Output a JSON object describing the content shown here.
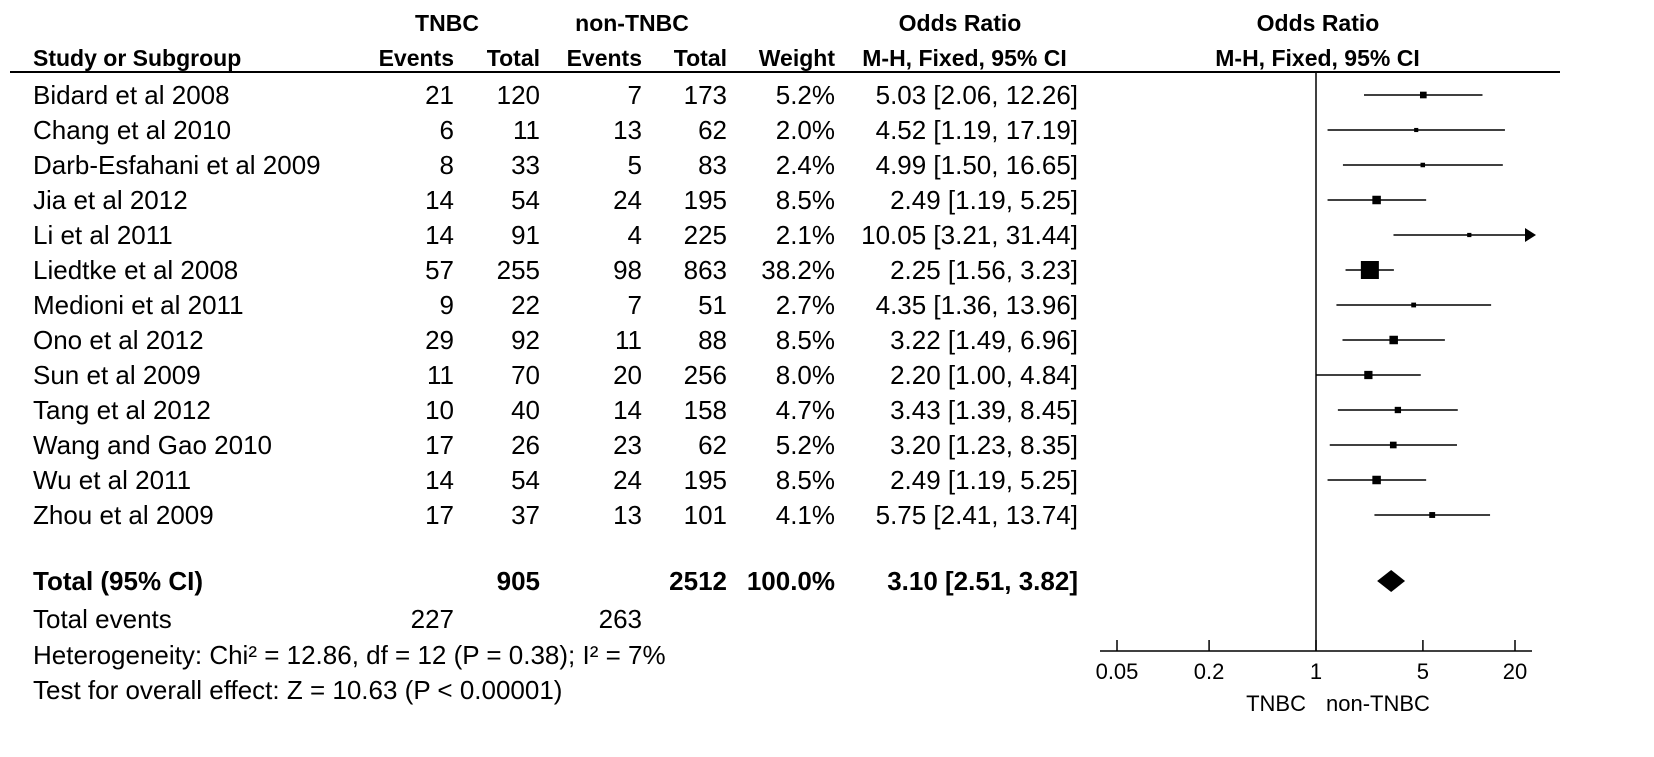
{
  "headers": {
    "group1": "TNBC",
    "group2": "non-TNBC",
    "odds_ratio": "Odds Ratio",
    "odds_ratio_plot": "Odds Ratio",
    "study": "Study or Subgroup",
    "events1": "Events",
    "total1": "Total",
    "events2": "Events",
    "total2": "Total",
    "weight": "Weight",
    "ci_method": "M-H, Fixed, 95% CI",
    "ci_method_plot": "M-H, Fixed, 95% CI"
  },
  "studies": [
    {
      "name": "Bidard et al 2008",
      "e1": "21",
      "n1": "120",
      "e2": "7",
      "n2": "173",
      "weight": "5.2%",
      "or_text": "5.03 [2.06, 12.26]"
    },
    {
      "name": "Chang et al 2010",
      "e1": "6",
      "n1": "11",
      "e2": "13",
      "n2": "62",
      "weight": "2.0%",
      "or_text": "4.52 [1.19, 17.19]"
    },
    {
      "name": "Darb-Esfahani et al 2009",
      "e1": "8",
      "n1": "33",
      "e2": "5",
      "n2": "83",
      "weight": "2.4%",
      "or_text": "4.99 [1.50, 16.65]"
    },
    {
      "name": "Jia et al 2012",
      "e1": "14",
      "n1": "54",
      "e2": "24",
      "n2": "195",
      "weight": "8.5%",
      "or_text": "2.49 [1.19, 5.25]"
    },
    {
      "name": "Li et al 2011",
      "e1": "14",
      "n1": "91",
      "e2": "4",
      "n2": "225",
      "weight": "2.1%",
      "or_text": "10.05 [3.21, 31.44]"
    },
    {
      "name": "Liedtke et al 2008",
      "e1": "57",
      "n1": "255",
      "e2": "98",
      "n2": "863",
      "weight": "38.2%",
      "or_text": "2.25 [1.56, 3.23]"
    },
    {
      "name": "Medioni et al 2011",
      "e1": "9",
      "n1": "22",
      "e2": "7",
      "n2": "51",
      "weight": "2.7%",
      "or_text": "4.35 [1.36, 13.96]"
    },
    {
      "name": "Ono et al 2012",
      "e1": "29",
      "n1": "92",
      "e2": "11",
      "n2": "88",
      "weight": "8.5%",
      "or_text": "3.22 [1.49, 6.96]"
    },
    {
      "name": "Sun et al 2009",
      "e1": "11",
      "n1": "70",
      "e2": "20",
      "n2": "256",
      "weight": "8.0%",
      "or_text": "2.20 [1.00, 4.84]"
    },
    {
      "name": "Tang et al 2012",
      "e1": "10",
      "n1": "40",
      "e2": "14",
      "n2": "158",
      "weight": "4.7%",
      "or_text": "3.43 [1.39, 8.45]"
    },
    {
      "name": "Wang and Gao 2010",
      "e1": "17",
      "n1": "26",
      "e2": "23",
      "n2": "62",
      "weight": "5.2%",
      "or_text": "3.20 [1.23, 8.35]"
    },
    {
      "name": "Wu et al 2011",
      "e1": "14",
      "n1": "54",
      "e2": "24",
      "n2": "195",
      "weight": "8.5%",
      "or_text": "2.49 [1.19, 5.25]"
    },
    {
      "name": "Zhou et al 2009",
      "e1": "17",
      "n1": "37",
      "e2": "13",
      "n2": "101",
      "weight": "4.1%",
      "or_text": "5.75 [2.41, 13.74]"
    }
  ],
  "total": {
    "label": "Total (95% CI)",
    "n1": "905",
    "n2": "2512",
    "weight": "100.0%",
    "or_text": "3.10 [2.51, 3.82]"
  },
  "total_events": {
    "label": "Total events",
    "e1": "227",
    "e2": "263"
  },
  "heterogeneity": "Heterogeneity: Chi² = 12.86, df = 12 (P = 0.38); I² = 7%",
  "overall_effect": "Test for overall effect: Z = 10.63 (P < 0.00001)",
  "chart_data": {
    "type": "forest",
    "x_scale": "log",
    "xlim": [
      0.05,
      20
    ],
    "reference_line": 1,
    "ticks": [
      0.05,
      0.2,
      1,
      5,
      20
    ],
    "tick_labels": [
      "0.05",
      "0.2",
      "1",
      "5",
      "20"
    ],
    "favours_left": "TNBC",
    "favours_right": "non-TNBC",
    "studies": [
      {
        "or": 5.03,
        "lo": 2.06,
        "hi": 12.26,
        "weight": 5.2
      },
      {
        "or": 4.52,
        "lo": 1.19,
        "hi": 17.19,
        "weight": 2.0
      },
      {
        "or": 4.99,
        "lo": 1.5,
        "hi": 16.65,
        "weight": 2.4
      },
      {
        "or": 2.49,
        "lo": 1.19,
        "hi": 5.25,
        "weight": 8.5
      },
      {
        "or": 10.05,
        "lo": 3.21,
        "hi": 31.44,
        "weight": 2.1
      },
      {
        "or": 2.25,
        "lo": 1.56,
        "hi": 3.23,
        "weight": 38.2
      },
      {
        "or": 4.35,
        "lo": 1.36,
        "hi": 13.96,
        "weight": 2.7
      },
      {
        "or": 3.22,
        "lo": 1.49,
        "hi": 6.96,
        "weight": 8.5
      },
      {
        "or": 2.2,
        "lo": 1.0,
        "hi": 4.84,
        "weight": 8.0
      },
      {
        "or": 3.43,
        "lo": 1.39,
        "hi": 8.45,
        "weight": 4.7
      },
      {
        "or": 3.2,
        "lo": 1.23,
        "hi": 8.35,
        "weight": 5.2
      },
      {
        "or": 2.49,
        "lo": 1.19,
        "hi": 5.25,
        "weight": 8.5
      },
      {
        "or": 5.75,
        "lo": 2.41,
        "hi": 13.74,
        "weight": 4.1
      }
    ],
    "pooled": {
      "or": 3.1,
      "lo": 2.51,
      "hi": 3.82
    }
  }
}
